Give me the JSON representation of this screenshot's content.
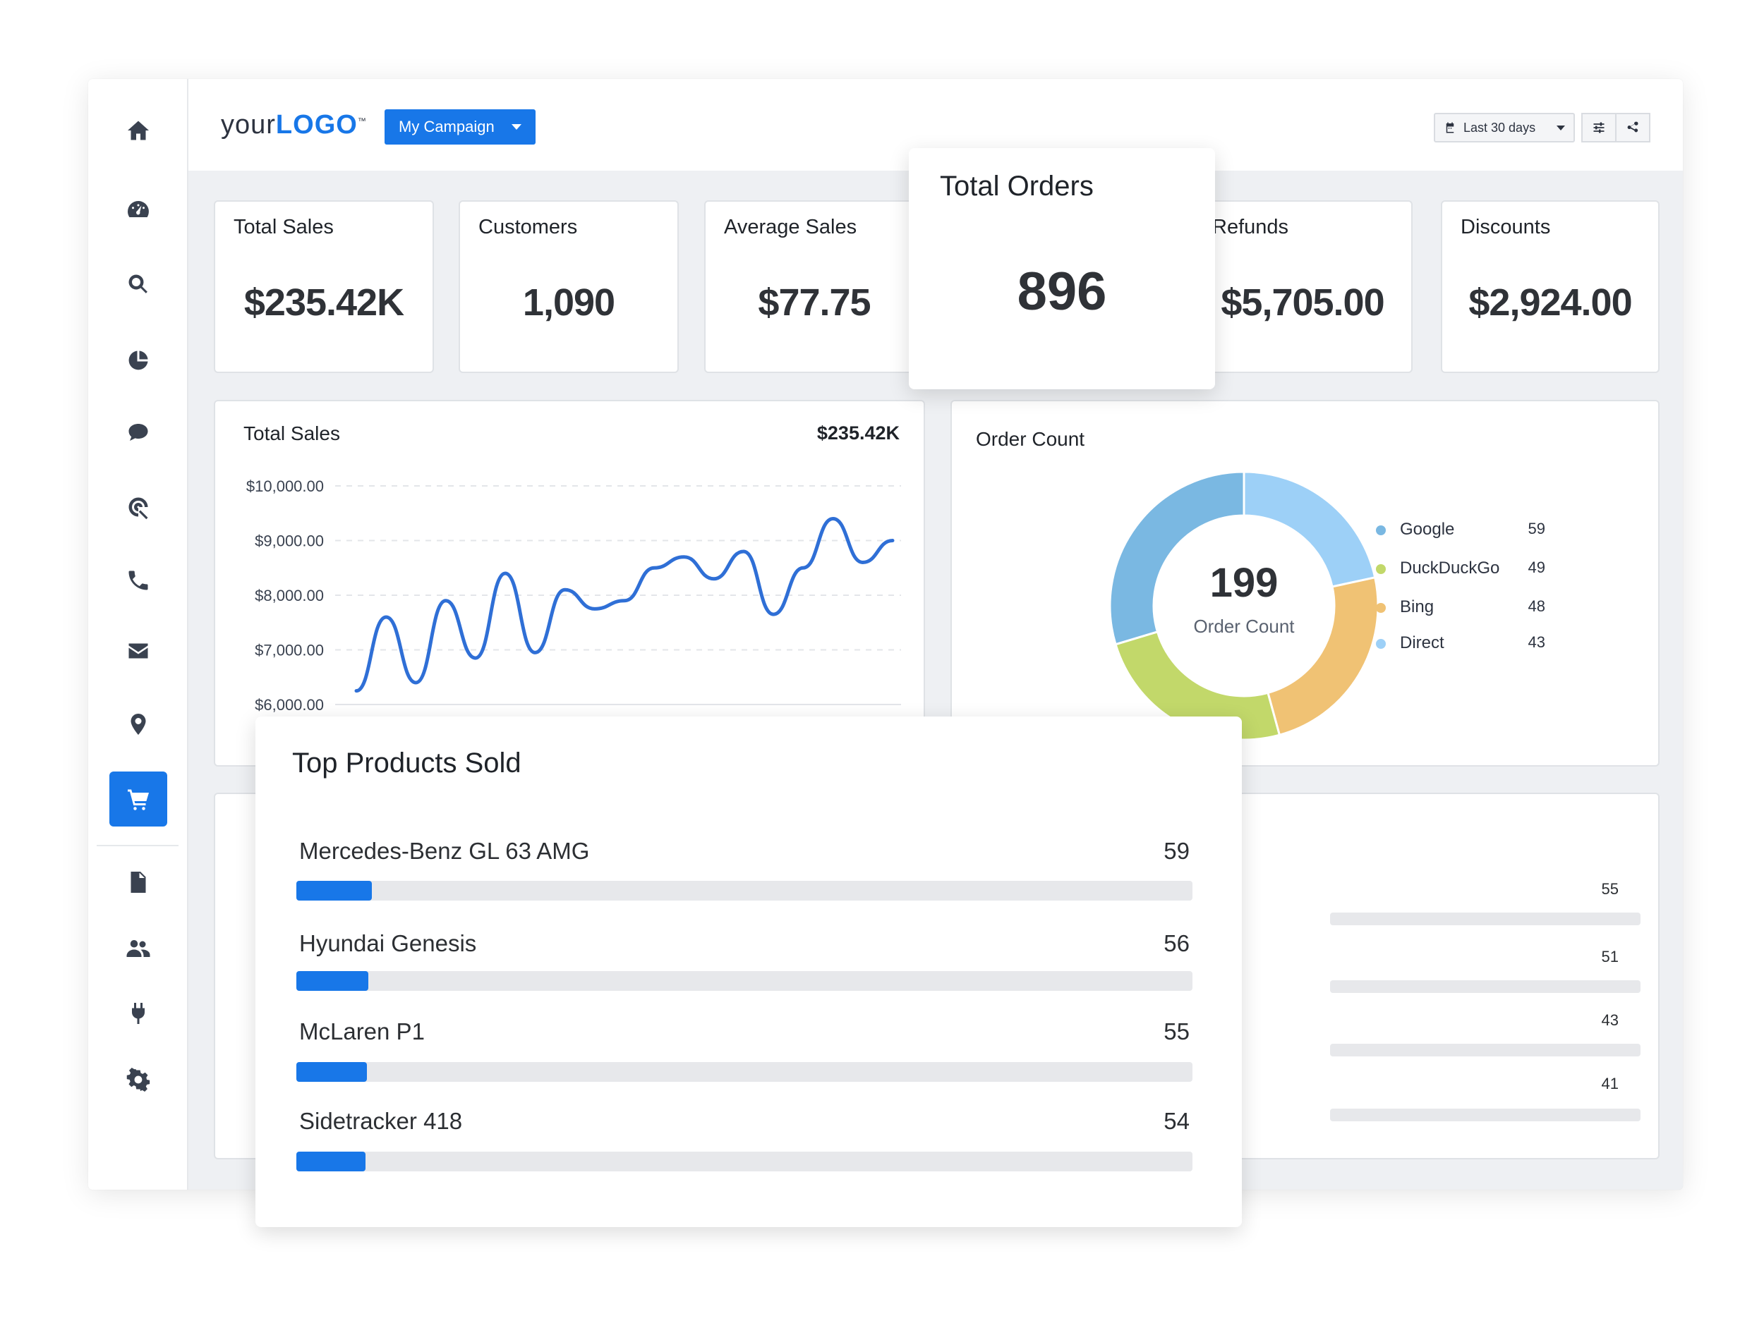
{
  "app": {
    "logo_regular": "your",
    "logo_bold": "LOGO",
    "logo_tm": "™",
    "campaign_label": "My Campaign",
    "date_range": "Last 30 days"
  },
  "sidebar": {
    "items": [
      {
        "name": "home-icon"
      },
      {
        "name": "dashboard-icon"
      },
      {
        "name": "search-icon"
      },
      {
        "name": "pie-chart-icon"
      },
      {
        "name": "chat-icon"
      },
      {
        "name": "seo-icon"
      },
      {
        "name": "phone-icon"
      },
      {
        "name": "mail-icon"
      },
      {
        "name": "location-icon"
      },
      {
        "name": "cart-icon",
        "active": true
      },
      {
        "name": "document-icon"
      },
      {
        "name": "users-icon"
      },
      {
        "name": "plug-icon"
      },
      {
        "name": "settings-icon"
      }
    ],
    "accent": "#1877e8"
  },
  "kpis": [
    {
      "title": "Total Sales",
      "value": "$235.42K"
    },
    {
      "title": "Customers",
      "value": "1,090"
    },
    {
      "title": "Average Sales",
      "value": "$77.75"
    },
    {
      "title": "Total Orders",
      "value": "896"
    },
    {
      "title": "Refunds",
      "value": "$5,705.00"
    },
    {
      "title": "Discounts",
      "value": "$2,924.00"
    }
  ],
  "sales_chart": {
    "title": "Total Sales",
    "total": "$235.42K"
  },
  "order_count": {
    "title": "Order Count",
    "center_value": "199",
    "center_label": "Order Count"
  },
  "top_products": {
    "title": "Top Products Sold",
    "max": 700,
    "items": [
      {
        "name": "Mercedes-Benz GL 63 AMG",
        "value": "59",
        "count": 59
      },
      {
        "name": "Hyundai Genesis",
        "value": "56",
        "count": 56
      },
      {
        "name": "McLaren P1",
        "value": "55",
        "count": 55
      },
      {
        "name": "Sidetracker 418",
        "value": "54",
        "count": 54
      }
    ]
  },
  "background_list": {
    "values": [
      "55",
      "51",
      "43",
      "41"
    ]
  },
  "chart_data": [
    {
      "type": "line",
      "title": "Total Sales",
      "ylim": [
        6000,
        10000
      ],
      "ytick_labels": [
        "$10,000.00",
        "$9,000.00",
        "$8,000.00",
        "$7,000.00",
        "$6,000.00"
      ],
      "yticks": [
        10000,
        9000,
        8000,
        7000,
        6000
      ],
      "series": [
        {
          "color": "#2f6fd6",
          "values": [
            6250,
            7600,
            6400,
            7900,
            6850,
            8400,
            6950,
            8100,
            7750,
            7900,
            8500,
            8700,
            8300,
            8800,
            7650,
            8500,
            9400,
            8600,
            9000
          ]
        }
      ]
    },
    {
      "type": "pie",
      "title": "Order Count",
      "donut": true,
      "categories": [
        "Google",
        "DuckDuckGo",
        "Bing",
        "Direct"
      ],
      "values": [
        59,
        49,
        48,
        43
      ],
      "colors": [
        "#7ab8e2",
        "#c2d86a",
        "#f0c274",
        "#9dd0f7"
      ]
    }
  ]
}
